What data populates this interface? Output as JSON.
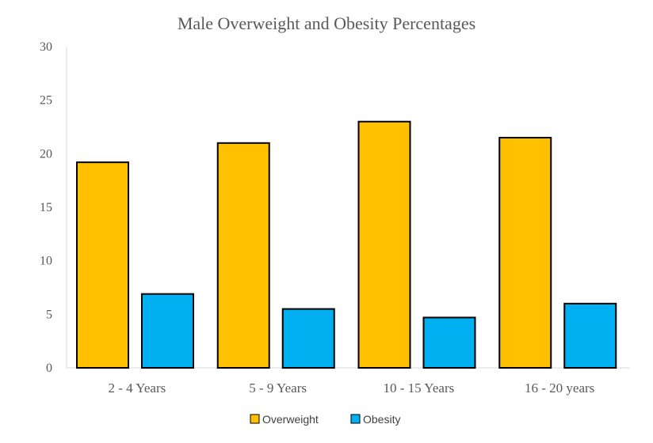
{
  "chart_data": {
    "type": "bar",
    "title": "Male Overweight and Obesity Percentages",
    "xlabel": "",
    "ylabel": "",
    "categories": [
      "2 - 4 Years",
      "5 - 9 Years",
      "10 - 15 Years",
      "16 - 20 years"
    ],
    "series": [
      {
        "name": "Overweight",
        "values": [
          19.2,
          21.0,
          23.0,
          21.5
        ],
        "color": "#FFC000"
      },
      {
        "name": "Obesity",
        "values": [
          6.9,
          5.5,
          4.7,
          6.0
        ],
        "color": "#00B0F0"
      }
    ],
    "ylim": [
      0,
      30
    ],
    "yticks": [
      0,
      5,
      10,
      15,
      20,
      25,
      30
    ],
    "grid": false,
    "legend_position": "bottom"
  }
}
